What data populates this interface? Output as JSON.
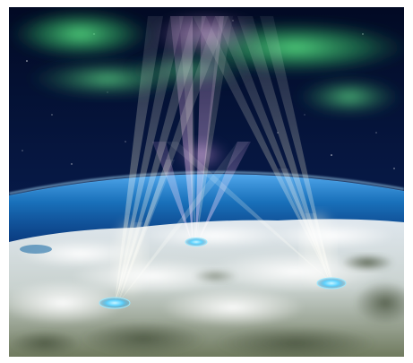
{
  "image": {
    "colors": {
      "frame": "#ffffff",
      "sky_top": "#020a24",
      "sky_bottom": "#0d2a6b",
      "aurora_green": "#3fd36a",
      "aurora_pink": "#d89ad8",
      "atmosphere_blue": "#1f8de0",
      "snow": "#eef3f6",
      "land": "#55604a",
      "beam_yellow": "#fff6b0",
      "beam_pink": "#f0b8f0",
      "antenna_cyan": "#5fd3ff"
    },
    "icons": [
      "aurora",
      "radar-beams",
      "ground-antenna",
      "earth-horizon"
    ]
  }
}
